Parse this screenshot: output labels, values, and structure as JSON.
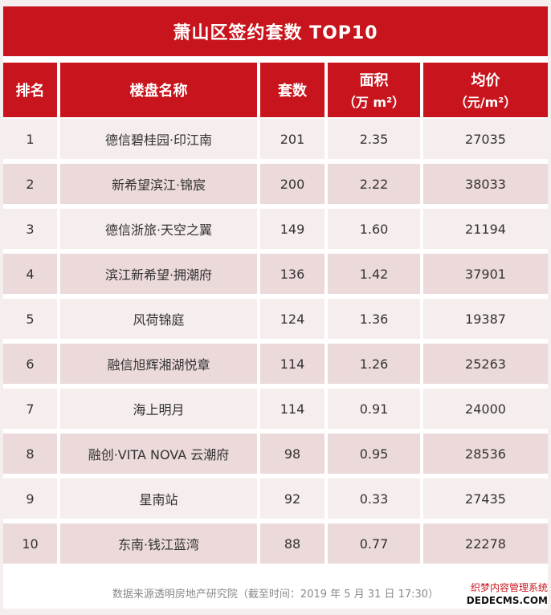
{
  "title": "萧山区签约套数 TOP10",
  "headers": {
    "rank": "排名",
    "name": "楼盘名称",
    "units": "套数",
    "area": "面积",
    "area_unit": "（万 m²）",
    "price": "均价",
    "price_unit": "（元/m²）"
  },
  "rows": [
    {
      "rank": "1",
      "name": "德信碧桂园·印江南",
      "units": "201",
      "area": "2.35",
      "price": "27035"
    },
    {
      "rank": "2",
      "name": "新希望滨江·锦宸",
      "units": "200",
      "area": "2.22",
      "price": "38033"
    },
    {
      "rank": "3",
      "name": "德信浙旅·天空之翼",
      "units": "149",
      "area": "1.60",
      "price": "21194"
    },
    {
      "rank": "4",
      "name": "滨江新希望·拥潮府",
      "units": "136",
      "area": "1.42",
      "price": "37901"
    },
    {
      "rank": "5",
      "name": "风荷锦庭",
      "units": "124",
      "area": "1.36",
      "price": "19387"
    },
    {
      "rank": "6",
      "name": "融信旭辉湘湖悦章",
      "units": "114",
      "area": "1.26",
      "price": "25263"
    },
    {
      "rank": "7",
      "name": "海上明月",
      "units": "114",
      "area": "0.91",
      "price": "24000"
    },
    {
      "rank": "8",
      "name": "融创·VITA NOVA 云潮府",
      "units": "98",
      "area": "0.95",
      "price": "28536"
    },
    {
      "rank": "9",
      "name": "星南站",
      "units": "92",
      "area": "0.33",
      "price": "27435"
    },
    {
      "rank": "10",
      "name": "东南·钱江蓝湾",
      "units": "88",
      "area": "0.77",
      "price": "22278"
    }
  ],
  "source": "数据来源透明房地产研究院（截至时间：2019 年 5 月 31 日  17:30）",
  "brand": {
    "line1": "织梦内容管理系统",
    "line2": "DEDECMS.COM"
  },
  "colors": {
    "header_red": "#c8141c",
    "row_light": "#f6eded",
    "row_dark": "#ecd9da"
  }
}
